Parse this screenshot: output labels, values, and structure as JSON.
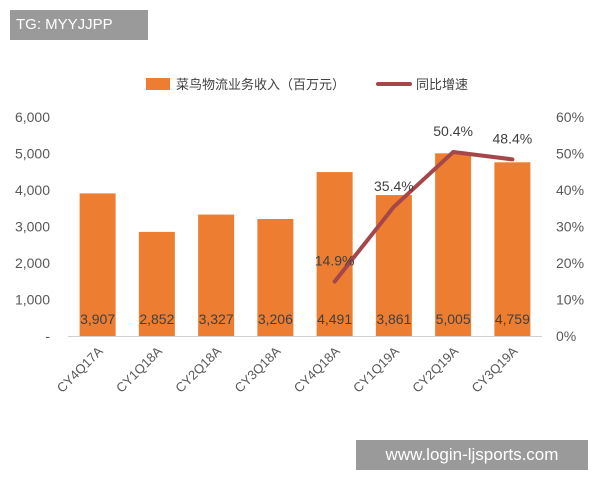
{
  "tag_text": "TG: MYYJJPP",
  "watermark_text": "www.login-ljsports.com",
  "chart_data": {
    "type": "bar",
    "categories": [
      "CY4Q17A",
      "CY1Q18A",
      "CY2Q18A",
      "CY3Q18A",
      "CY4Q18A",
      "CY1Q19A",
      "CY2Q19A",
      "CY3Q19A"
    ],
    "series": [
      {
        "name": "菜鸟物流业务收入（百万元）",
        "type": "bar",
        "axis": "left",
        "values": [
          3907,
          2852,
          3327,
          3206,
          4491,
          3861,
          5005,
          4759
        ],
        "labels": [
          "3,907",
          "2,852",
          "3,327",
          "3,206",
          "4,491",
          "3,861",
          "5,005",
          "4,759"
        ],
        "color": "#ED7D31"
      },
      {
        "name": "同比增速",
        "type": "line",
        "axis": "right",
        "values": [
          null,
          null,
          null,
          null,
          14.9,
          35.4,
          50.4,
          48.4
        ],
        "labels": [
          "",
          "",
          "",
          "",
          "14.9%",
          "35.4%",
          "50.4%",
          "48.4%"
        ],
        "color": "#A5474A"
      }
    ],
    "left_axis": {
      "ylim": [
        0,
        6000
      ],
      "ticks": [
        0,
        1000,
        2000,
        3000,
        4000,
        5000,
        6000
      ],
      "tick_labels": [
        "-",
        "1,000",
        "2,000",
        "3,000",
        "4,000",
        "5,000",
        "6,000"
      ]
    },
    "right_axis": {
      "ylim": [
        0,
        60
      ],
      "ticks": [
        0,
        10,
        20,
        30,
        40,
        50,
        60
      ],
      "tick_labels": [
        "0%",
        "10%",
        "20%",
        "30%",
        "40%",
        "50%",
        "60%"
      ]
    },
    "grid": false,
    "legend_position": "top"
  }
}
